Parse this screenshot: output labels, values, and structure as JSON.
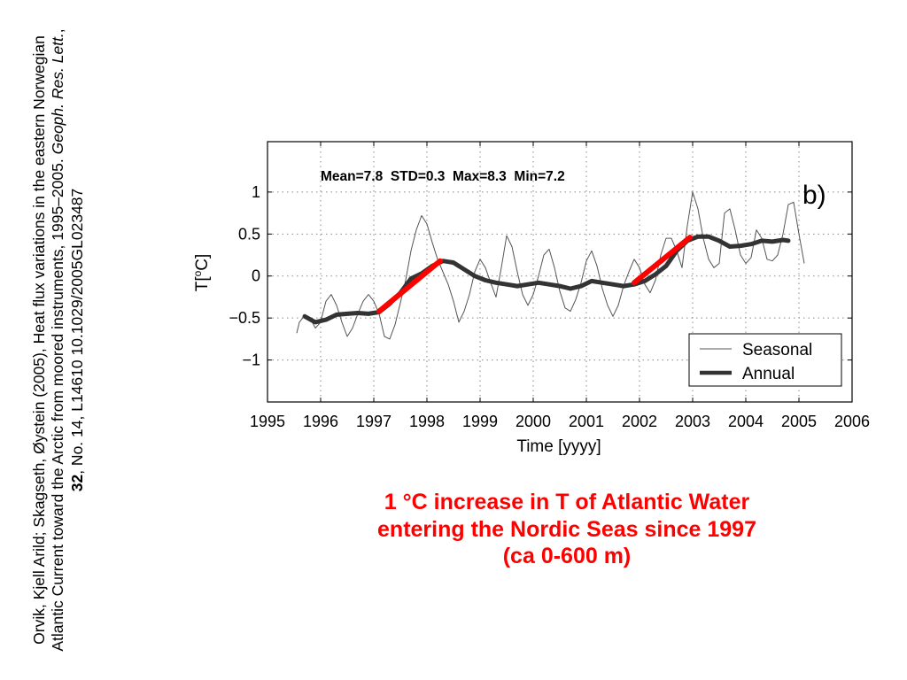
{
  "citation": {
    "part1": "Orvik, Kjell Arild; Skagseth, Øystein (2005), Heat flux variations in the eastern Norwegian Atlantic Current toward the Arctic from moored instruments, 1995–2005.",
    "journal": "Geoph. Res. Lett.",
    "sep1": ",",
    "volume": "32",
    "part2": ", No. 14, L14610 10.1029/2005GL023487"
  },
  "caption": {
    "line1": "1 °C increase in T of Atlantic Water",
    "line2": "entering the Nordic Seas since 1997",
    "line3": "(ca 0-600 m)"
  },
  "colors": {
    "trend": "#ff0000",
    "annual": "#333333",
    "seasonal": "#555555",
    "caption": "#ff0000"
  },
  "chart_data": {
    "type": "line",
    "panel_label": "b)",
    "stats": "Mean=7.8  STD=0.3  Max=8.3  Min=7.2",
    "xlabel": "Time [yyyy]",
    "ylabel": "T[°C]",
    "xlim": [
      1995,
      2006
    ],
    "ylim": [
      -1.5,
      1.6
    ],
    "xticks": [
      1995,
      1996,
      1997,
      1998,
      1999,
      2000,
      2001,
      2002,
      2003,
      2004,
      2005,
      2006
    ],
    "yticks": [
      -1,
      -0.5,
      0,
      0.5,
      1
    ],
    "ytick_labels": [
      "−1",
      "−0.5",
      "0",
      "0.5",
      "1"
    ],
    "grid": true,
    "legend_position": "bottom-right",
    "series": [
      {
        "name": "Seasonal",
        "style": "thin",
        "x": [
          1995.55,
          1995.6,
          1995.7,
          1995.8,
          1995.9,
          1996.0,
          1996.05,
          1996.1,
          1996.2,
          1996.3,
          1996.4,
          1996.5,
          1996.6,
          1996.7,
          1996.8,
          1996.9,
          1997.0,
          1997.1,
          1997.2,
          1997.3,
          1997.4,
          1997.5,
          1997.6,
          1997.7,
          1997.8,
          1997.9,
          1998.0,
          1998.1,
          1998.2,
          1998.3,
          1998.4,
          1998.5,
          1998.6,
          1998.7,
          1998.8,
          1998.9,
          1999.0,
          1999.1,
          1999.2,
          1999.3,
          1999.4,
          1999.5,
          1999.6,
          1999.7,
          1999.8,
          1999.9,
          2000.0,
          2000.1,
          2000.2,
          2000.3,
          2000.4,
          2000.5,
          2000.6,
          2000.7,
          2000.8,
          2000.9,
          2001.0,
          2001.1,
          2001.2,
          2001.3,
          2001.4,
          2001.5,
          2001.6,
          2001.7,
          2001.8,
          2001.9,
          2002.0,
          2002.1,
          2002.2,
          2002.3,
          2002.4,
          2002.5,
          2002.6,
          2002.7,
          2002.8,
          2002.9,
          2003.0,
          2003.1,
          2003.2,
          2003.3,
          2003.4,
          2003.5,
          2003.6,
          2003.7,
          2003.8,
          2003.9,
          2004.0,
          2004.1,
          2004.2,
          2004.3,
          2004.4,
          2004.5,
          2004.6,
          2004.7,
          2004.8,
          2004.9,
          2005.0,
          2005.1
        ],
        "y": [
          -0.68,
          -0.55,
          -0.47,
          -0.5,
          -0.62,
          -0.55,
          -0.42,
          -0.3,
          -0.22,
          -0.35,
          -0.55,
          -0.72,
          -0.62,
          -0.45,
          -0.3,
          -0.22,
          -0.3,
          -0.45,
          -0.72,
          -0.75,
          -0.58,
          -0.32,
          -0.05,
          0.3,
          0.55,
          0.72,
          0.62,
          0.4,
          0.2,
          0.05,
          -0.1,
          -0.3,
          -0.55,
          -0.42,
          -0.22,
          0.05,
          0.2,
          0.1,
          -0.08,
          -0.25,
          0.1,
          0.48,
          0.35,
          0.05,
          -0.22,
          -0.35,
          -0.22,
          0.0,
          0.25,
          0.32,
          0.1,
          -0.18,
          -0.38,
          -0.42,
          -0.28,
          -0.08,
          0.18,
          0.3,
          0.12,
          -0.15,
          -0.35,
          -0.48,
          -0.35,
          -0.12,
          0.05,
          0.2,
          0.1,
          -0.1,
          -0.2,
          -0.05,
          0.25,
          0.45,
          0.45,
          0.3,
          0.1,
          0.6,
          1.0,
          0.8,
          0.45,
          0.2,
          0.1,
          0.15,
          0.75,
          0.8,
          0.55,
          0.25,
          0.15,
          0.22,
          0.55,
          0.45,
          0.2,
          0.18,
          0.25,
          0.5,
          0.85,
          0.88,
          0.5,
          0.15
        ]
      },
      {
        "name": "Annual",
        "style": "thick",
        "x": [
          1995.7,
          1995.9,
          1996.1,
          1996.3,
          1996.5,
          1996.7,
          1996.9,
          1997.1,
          1997.3,
          1997.5,
          1997.7,
          1997.9,
          1998.1,
          1998.3,
          1998.5,
          1998.7,
          1998.9,
          1999.1,
          1999.3,
          1999.5,
          1999.7,
          1999.9,
          2000.1,
          2000.3,
          2000.5,
          2000.7,
          2000.9,
          2001.1,
          2001.3,
          2001.5,
          2001.7,
          2001.9,
          2002.1,
          2002.3,
          2002.5,
          2002.7,
          2002.9,
          2003.1,
          2003.3,
          2003.5,
          2003.7,
          2003.9,
          2004.1,
          2004.3,
          2004.5,
          2004.7,
          2004.8
        ],
        "y": [
          -0.48,
          -0.55,
          -0.52,
          -0.46,
          -0.45,
          -0.44,
          -0.45,
          -0.43,
          -0.33,
          -0.2,
          -0.03,
          0.03,
          0.12,
          0.18,
          0.16,
          0.08,
          0.0,
          -0.05,
          -0.08,
          -0.1,
          -0.12,
          -0.1,
          -0.08,
          -0.1,
          -0.12,
          -0.15,
          -0.12,
          -0.06,
          -0.08,
          -0.1,
          -0.12,
          -0.1,
          -0.06,
          0.02,
          0.12,
          0.3,
          0.42,
          0.47,
          0.47,
          0.42,
          0.35,
          0.36,
          0.38,
          0.42,
          0.41,
          0.43,
          0.42
        ]
      },
      {
        "name": "",
        "style": "trend",
        "x": [
          1997.1,
          1998.25
        ],
        "y": [
          -0.42,
          0.18
        ]
      },
      {
        "name": "",
        "style": "trend",
        "x": [
          2001.9,
          2002.95
        ],
        "y": [
          -0.08,
          0.46
        ]
      }
    ],
    "legend": [
      "Seasonal",
      "Annual"
    ]
  }
}
